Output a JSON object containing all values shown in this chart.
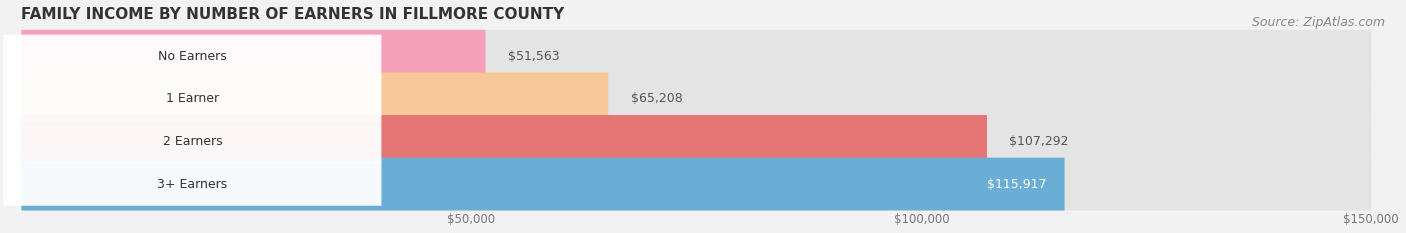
{
  "title": "FAMILY INCOME BY NUMBER OF EARNERS IN FILLMORE COUNTY",
  "source": "Source: ZipAtlas.com",
  "categories": [
    "No Earners",
    "1 Earner",
    "2 Earners",
    "3+ Earners"
  ],
  "values": [
    51563,
    65208,
    107292,
    115917
  ],
  "labels": [
    "$51,563",
    "$65,208",
    "$107,292",
    "$115,917"
  ],
  "bar_colors": [
    "#f5a0b8",
    "#f8c898",
    "#e57575",
    "#6aaed6"
  ],
  "label_bg_colors": [
    "#f07898",
    "#f0a030",
    "#d04848",
    "#3a7abf"
  ],
  "bg_color": "#f2f2f2",
  "bar_bg_color": "#e4e4e4",
  "xlim_min": 0,
  "xlim_max": 150000,
  "xticks": [
    50000,
    100000,
    150000
  ],
  "xticklabels": [
    "$50,000",
    "$100,000",
    "$150,000"
  ],
  "title_fontsize": 11,
  "label_fontsize": 9,
  "value_fontsize": 9,
  "source_fontsize": 9,
  "value_inside_idx": 3,
  "inside_value_color": "white",
  "outside_value_color": "#555555"
}
